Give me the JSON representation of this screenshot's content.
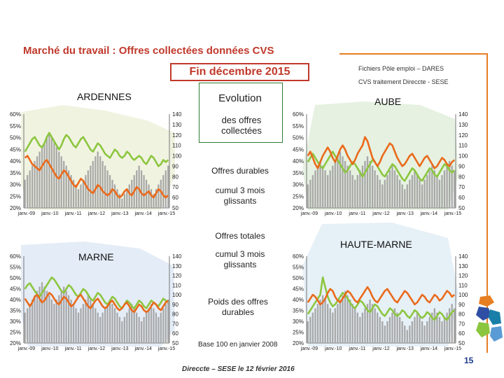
{
  "header": {
    "title": "Marché du travail : Offres collectées données CVS",
    "subtitle": "Fin  décembre 2015",
    "source_line1": "Fichiers Pôle emploi – DARES",
    "source_line2": "CVS traitement Direccte - SESE"
  },
  "legend": {
    "line1": "Evolution",
    "line2": "des  offres collectées",
    "durables": "Offres durables",
    "cumul1": "cumul 3 mois glissants",
    "totales": "Offres totales",
    "cumul2": "cumul 3 mois glissants",
    "poids": "Poids des offres durables",
    "base": "Base 100 en janvier 2008"
  },
  "footer": {
    "credit": "Direccte – SESE le 12 février 2016",
    "page": "15"
  },
  "colors": {
    "bars": "#a8a8a8",
    "durables": "#ea6a1b",
    "totales": "#8cc63f",
    "title": "#c0392b",
    "accent_rule": "#e67e22"
  },
  "chart_data": [
    {
      "type": "bar",
      "region": "ARDENNES",
      "x_ticks": [
        "janv.-09",
        "janv.-10",
        "janv.-11",
        "janv.-12",
        "janv.-13",
        "janv.-14",
        "janv.-15"
      ],
      "left_axis_ticks": [
        "20%",
        "25%",
        "30%",
        "35%",
        "40%",
        "45%",
        "50%",
        "55%",
        "60%"
      ],
      "right_axis_ticks": [
        "50",
        "60",
        "70",
        "80",
        "90",
        "100",
        "110",
        "120",
        "130",
        "140"
      ],
      "ylim_left": [
        20,
        60
      ],
      "ylim_right": [
        50,
        140
      ],
      "bars_pct": [
        32,
        34,
        36,
        38,
        40,
        42,
        44,
        46,
        48,
        50,
        52,
        50,
        48,
        46,
        44,
        42,
        40,
        38,
        36,
        34,
        32,
        30,
        28,
        30,
        32,
        34,
        36,
        38,
        40,
        42,
        44,
        42,
        40,
        38,
        36,
        34,
        32,
        30,
        28,
        26,
        24,
        26,
        28,
        30,
        32,
        34,
        36,
        38,
        36,
        34,
        32,
        30,
        28,
        26,
        28,
        30,
        32,
        34,
        36,
        38
      ],
      "durables": [
        98,
        100,
        96,
        92,
        90,
        88,
        86,
        90,
        94,
        96,
        92,
        88,
        84,
        80,
        78,
        82,
        86,
        84,
        80,
        76,
        72,
        70,
        74,
        78,
        76,
        72,
        68,
        66,
        64,
        68,
        72,
        70,
        66,
        64,
        62,
        64,
        68,
        66,
        62,
        60,
        62,
        66,
        68,
        64,
        62,
        66,
        70,
        68,
        64,
        62,
        64,
        66,
        62,
        60,
        64,
        68,
        66,
        62,
        60,
        62
      ],
      "totales": [
        104,
        108,
        112,
        116,
        118,
        114,
        110,
        108,
        112,
        118,
        122,
        118,
        114,
        110,
        106,
        110,
        116,
        120,
        118,
        114,
        110,
        108,
        112,
        116,
        118,
        114,
        110,
        106,
        104,
        108,
        112,
        110,
        106,
        102,
        100,
        98,
        102,
        106,
        104,
        100,
        98,
        100,
        104,
        102,
        98,
        96,
        98,
        100,
        98,
        94,
        92,
        96,
        100,
        98,
        94,
        90,
        92,
        96,
        94,
        96
      ]
    },
    {
      "type": "bar",
      "region": "AUBE",
      "x_ticks": [
        "janv.-09",
        "janv.-10",
        "janv.-11",
        "janv.-12",
        "janv.-13",
        "janv.-14",
        "janv.-15"
      ],
      "left_axis_ticks": [
        "20%",
        "25%",
        "30%",
        "35%",
        "40%",
        "45%",
        "50%",
        "55%",
        "60%"
      ],
      "right_axis_ticks": [
        "50",
        "60",
        "70",
        "80",
        "90",
        "100",
        "110",
        "120",
        "130",
        "140"
      ],
      "ylim_left": [
        20,
        60
      ],
      "ylim_right": [
        50,
        140
      ],
      "bars_pct": [
        30,
        32,
        34,
        36,
        38,
        40,
        38,
        36,
        34,
        36,
        38,
        40,
        42,
        44,
        42,
        40,
        38,
        36,
        34,
        32,
        34,
        36,
        38,
        40,
        42,
        40,
        38,
        36,
        34,
        32,
        30,
        32,
        34,
        36,
        38,
        36,
        34,
        32,
        30,
        28,
        30,
        32,
        34,
        36,
        34,
        32,
        30,
        32,
        34,
        36,
        38,
        36,
        34,
        32,
        34,
        36,
        38,
        40,
        38,
        36
      ],
      "durables": [
        100,
        104,
        98,
        92,
        88,
        94,
        100,
        104,
        108,
        104,
        98,
        94,
        100,
        106,
        110,
        106,
        100,
        96,
        92,
        96,
        102,
        106,
        110,
        118,
        114,
        106,
        98,
        94,
        90,
        94,
        100,
        104,
        108,
        112,
        110,
        104,
        98,
        94,
        90,
        92,
        96,
        100,
        102,
        98,
        94,
        90,
        94,
        98,
        100,
        96,
        92,
        88,
        90,
        94,
        98,
        96,
        92,
        90,
        94,
        96
      ],
      "totales": [
        94,
        98,
        102,
        98,
        94,
        90,
        88,
        92,
        96,
        100,
        104,
        100,
        96,
        92,
        88,
        84,
        86,
        90,
        94,
        92,
        88,
        84,
        80,
        84,
        88,
        92,
        96,
        94,
        90,
        86,
        82,
        80,
        84,
        88,
        92,
        90,
        86,
        82,
        78,
        76,
        80,
        84,
        88,
        86,
        82,
        78,
        76,
        80,
        84,
        88,
        86,
        82,
        80,
        84,
        88,
        92,
        90,
        86,
        84,
        86
      ]
    },
    {
      "type": "bar",
      "region": "MARNE",
      "x_ticks": [
        "janv.-09",
        "janv.-10",
        "janv.-11",
        "janv.-12",
        "janv.-13",
        "janv.-14",
        "janv.-15"
      ],
      "left_axis_ticks": [
        "20%",
        "25%",
        "30%",
        "35%",
        "40%",
        "45%",
        "50%",
        "55%",
        "60%"
      ],
      "right_axis_ticks": [
        "50",
        "60",
        "70",
        "80",
        "90",
        "100",
        "110",
        "120",
        "130",
        "140"
      ],
      "ylim_left": [
        20,
        60
      ],
      "ylim_right": [
        50,
        140
      ],
      "bars_pct": [
        34,
        36,
        38,
        40,
        42,
        44,
        46,
        48,
        46,
        44,
        42,
        40,
        38,
        40,
        42,
        44,
        46,
        44,
        42,
        40,
        38,
        36,
        34,
        36,
        38,
        40,
        42,
        40,
        38,
        36,
        34,
        32,
        34,
        36,
        38,
        40,
        38,
        36,
        34,
        32,
        30,
        32,
        34,
        36,
        38,
        36,
        34,
        32,
        30,
        32,
        34,
        36,
        38,
        36,
        34,
        32,
        34,
        36,
        38,
        40
      ],
      "durables": [
        96,
        92,
        88,
        92,
        98,
        100,
        96,
        92,
        94,
        98,
        102,
        100,
        96,
        92,
        90,
        94,
        98,
        96,
        92,
        88,
        90,
        94,
        98,
        100,
        96,
        92,
        88,
        86,
        90,
        94,
        96,
        92,
        88,
        86,
        88,
        92,
        94,
        90,
        86,
        84,
        86,
        90,
        92,
        88,
        84,
        82,
        86,
        90,
        88,
        84,
        82,
        84,
        88,
        92,
        90,
        86,
        84,
        88,
        92,
        94
      ],
      "totales": [
        106,
        110,
        112,
        108,
        104,
        100,
        98,
        102,
        106,
        110,
        114,
        118,
        116,
        112,
        108,
        104,
        102,
        106,
        110,
        108,
        104,
        100,
        98,
        102,
        106,
        104,
        100,
        96,
        94,
        98,
        102,
        100,
        96,
        92,
        90,
        94,
        98,
        96,
        92,
        88,
        86,
        90,
        94,
        92,
        88,
        86,
        90,
        94,
        92,
        88,
        86,
        90,
        94,
        92,
        90,
        88,
        92,
        96,
        94,
        92
      ]
    },
    {
      "type": "bar",
      "region": "HAUTE-MARNE",
      "x_ticks": [
        "janv.-09",
        "janv.-10",
        "janv.-11",
        "janv.-12",
        "janv.-13",
        "janv.-14",
        "janv.-15"
      ],
      "left_axis_ticks": [
        "20%",
        "25%",
        "30%",
        "35%",
        "40%",
        "45%",
        "50%",
        "55%",
        "60%"
      ],
      "right_axis_ticks": [
        "50",
        "60",
        "70",
        "80",
        "90",
        "100",
        "110",
        "120",
        "130",
        "140"
      ],
      "ylim_left": [
        20,
        60
      ],
      "ylim_right": [
        50,
        140
      ],
      "bars_pct": [
        30,
        32,
        34,
        36,
        38,
        40,
        42,
        40,
        38,
        36,
        34,
        36,
        38,
        40,
        42,
        44,
        42,
        40,
        38,
        36,
        34,
        32,
        34,
        36,
        38,
        40,
        38,
        36,
        34,
        32,
        30,
        28,
        30,
        32,
        34,
        36,
        34,
        32,
        30,
        28,
        26,
        28,
        30,
        32,
        34,
        32,
        30,
        28,
        30,
        32,
        34,
        36,
        34,
        32,
        30,
        32,
        34,
        36,
        38,
        36
      ],
      "durables": [
        92,
        96,
        100,
        98,
        94,
        90,
        92,
        96,
        102,
        106,
        104,
        98,
        94,
        92,
        96,
        100,
        104,
        102,
        98,
        94,
        92,
        96,
        100,
        104,
        108,
        104,
        98,
        94,
        92,
        96,
        100,
        104,
        106,
        102,
        98,
        94,
        92,
        96,
        100,
        104,
        102,
        98,
        94,
        90,
        92,
        96,
        100,
        98,
        94,
        92,
        96,
        100,
        98,
        94,
        96,
        100,
        104,
        102,
        98,
        100
      ],
      "totales": [
        80,
        84,
        88,
        92,
        96,
        100,
        118,
        108,
        98,
        92,
        88,
        90,
        94,
        98,
        102,
        100,
        96,
        92,
        88,
        86,
        90,
        94,
        92,
        88,
        84,
        82,
        86,
        90,
        88,
        84,
        80,
        78,
        82,
        86,
        84,
        80,
        78,
        80,
        84,
        82,
        78,
        76,
        80,
        84,
        82,
        78,
        76,
        78,
        82,
        80,
        76,
        74,
        78,
        82,
        80,
        76,
        74,
        78,
        82,
        84
      ]
    }
  ]
}
